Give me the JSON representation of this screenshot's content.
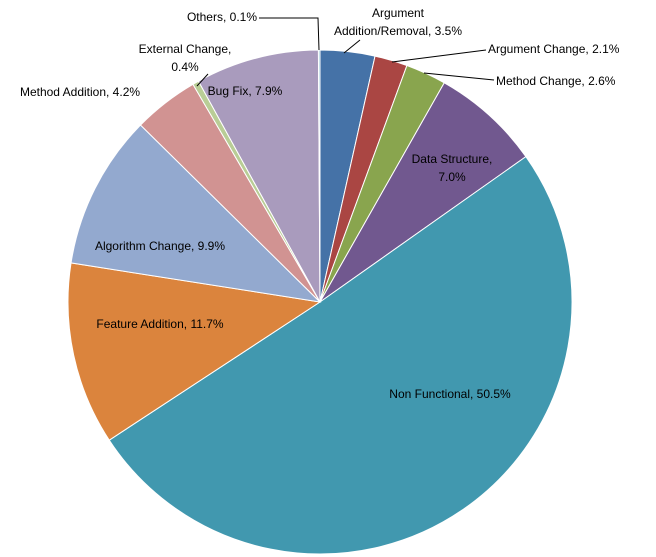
{
  "chart_data": {
    "type": "pie",
    "values": [
      3.5,
      2.1,
      2.6,
      7.0,
      50.5,
      11.7,
      9.9,
      4.2,
      0.4,
      7.9,
      0.1
    ],
    "value_labels": [
      "Argument\nAddition/Removal, 3.5%",
      "Argument Change, 2.1%",
      "Method Change, 2.6%",
      "Data Structure,\n7.0%",
      "Non Functional, 50.5%",
      "Feature Addition, 11.7%",
      "Algorithm Change, 9.9%",
      "Method Addition, 4.2%",
      "External Change,\n0.4%",
      "Bug Fix, 7.9%",
      "Others, 0.1%"
    ],
    "colors": [
      "#4572a7",
      "#aa4643",
      "#89a54e",
      "#71588f",
      "#4198af",
      "#db843d",
      "#93a9cf",
      "#d19392",
      "#b9cd96",
      "#a99bbd",
      "#92c5d6"
    ]
  }
}
